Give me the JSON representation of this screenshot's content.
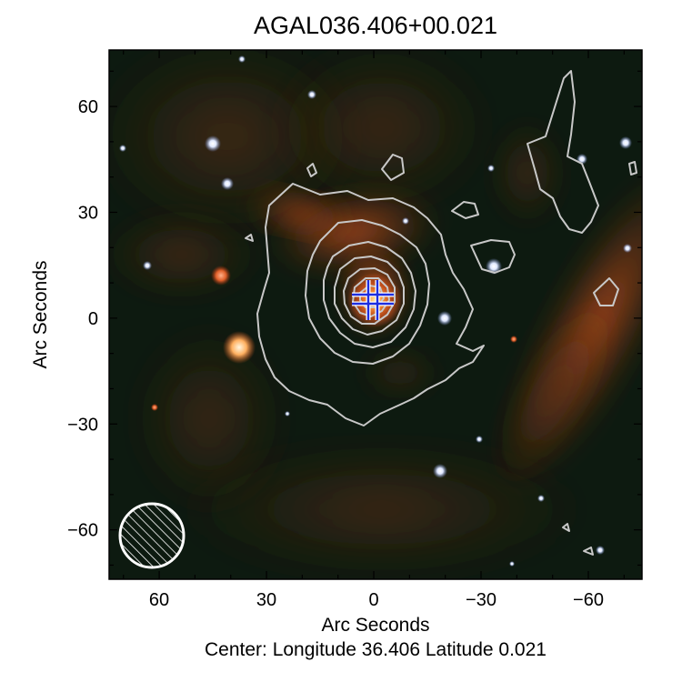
{
  "title": "AGAL036.406+00.021",
  "xlabel": "Arc Seconds",
  "ylabel": "Arc Seconds",
  "footer": "Center:  Longitude 36.406 Latitude 0.021",
  "xticks": [
    {
      "value": 60,
      "label": "60"
    },
    {
      "value": 30,
      "label": "30"
    },
    {
      "value": 0,
      "label": "0"
    },
    {
      "value": -30,
      "label": "−30"
    },
    {
      "value": -60,
      "label": "−60"
    }
  ],
  "yticks": [
    {
      "value": 60,
      "label": "60"
    },
    {
      "value": 30,
      "label": "30"
    },
    {
      "value": 0,
      "label": "0"
    },
    {
      "value": -30,
      "label": "−30"
    },
    {
      "value": -60,
      "label": "−60"
    }
  ],
  "xlim": [
    74,
    -75
  ],
  "ylim": [
    -74,
    76
  ],
  "colors": {
    "background": "#0d1a10",
    "nebula": "#d2531c",
    "contour": "#c8c8c8",
    "marker_blue": "#1e2ee0",
    "beam": "#ffffff"
  },
  "marker": {
    "x": 1.5,
    "y": 4,
    "icon": "blue-double-cross-marker"
  },
  "beam": {
    "x": 62,
    "y": -62,
    "radius_arcsec": 9
  }
}
